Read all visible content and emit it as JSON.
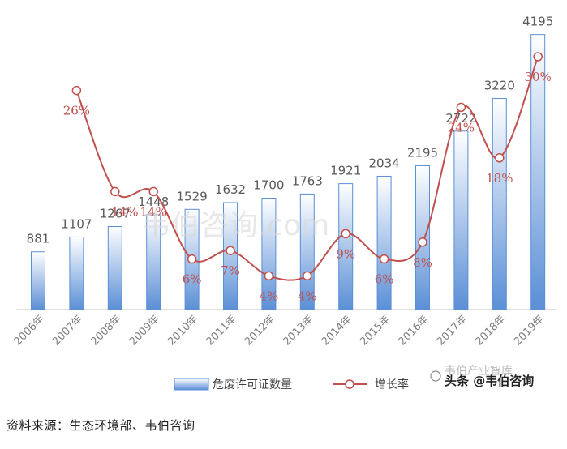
{
  "chart_data": {
    "type": "bar",
    "categories": [
      "2006年",
      "2007年",
      "2008年",
      "2009年",
      "2010年",
      "2011年",
      "2012年",
      "2013年",
      "2014年",
      "2015年",
      "2016年",
      "2017年",
      "2018年",
      "2019年"
    ],
    "series": [
      {
        "name": "危废许可证数量",
        "type": "bar",
        "values": [
          881,
          1107,
          1267,
          1448,
          1529,
          1632,
          1700,
          1763,
          1921,
          2034,
          2195,
          2722,
          3220,
          4195
        ]
      },
      {
        "name": "增长率",
        "type": "line",
        "values": [
          null,
          26,
          14,
          14,
          6,
          7,
          4,
          4,
          9,
          6,
          8,
          24,
          18,
          30
        ]
      }
    ],
    "growth_labels": [
      "",
      "26%",
      "14%",
      "14%",
      "6%",
      "7%",
      "4%",
      "4%",
      "9%",
      "6%",
      "8%",
      "24%",
      "18%",
      "30%"
    ],
    "ylim": [
      0,
      4500
    ],
    "y2lim": [
      0,
      35
    ],
    "legend_position": "bottom",
    "colors": {
      "bar_fill_top": "#ffffff",
      "bar_fill_bottom": "#5b8fd6",
      "bar_stroke": "#5b8fd6",
      "line": "#c0504d",
      "label_value": "#595959",
      "label_rate": "#c0504d",
      "axis": "#bfbfbf"
    }
  },
  "watermark": "韦伯咨询.com",
  "logo_text": "头条 @韦伯咨询",
  "logo_overlay": "韦伯产业智库",
  "source_note": "资料来源：生态环境部、韦伯咨询"
}
